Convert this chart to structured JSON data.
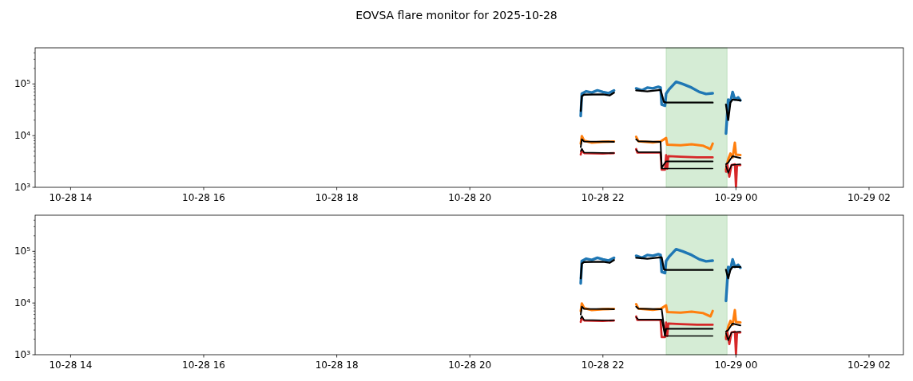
{
  "chart_data": [
    {
      "type": "line",
      "title": "EOVSA flare monitor for 2025-10-28",
      "log": true,
      "xlim": [
        "2025-10-28T13:28",
        "2025-10-29T02:31"
      ],
      "xticks": [
        {
          "value": "2025-10-28T14:00",
          "label": "10-28 14"
        },
        {
          "value": "2025-10-28T16:00",
          "label": "10-28 16"
        },
        {
          "value": "2025-10-28T18:00",
          "label": "10-28 18"
        },
        {
          "value": "2025-10-28T20:00",
          "label": "10-28 20"
        },
        {
          "value": "2025-10-28T22:00",
          "label": "10-28 22"
        },
        {
          "value": "2025-10-29T00:00",
          "label": "10-29 00"
        },
        {
          "value": "2025-10-29T02:00",
          "label": "10-29 02"
        }
      ],
      "ylim": [
        1000,
        500000
      ],
      "yticks": [
        {
          "value": 1000,
          "label": "10³"
        },
        {
          "value": 10000,
          "label": "10⁴"
        },
        {
          "value": 100000,
          "label": "10⁵"
        },
        {
          "value": 2000,
          "label": null
        },
        {
          "value": 3000,
          "label": null
        },
        {
          "value": 4000,
          "label": null
        },
        {
          "value": 5000,
          "label": null
        },
        {
          "value": 6000,
          "label": null
        },
        {
          "value": 7000,
          "label": null
        },
        {
          "value": 8000,
          "label": null
        },
        {
          "value": 9000,
          "label": null
        },
        {
          "value": 20000,
          "label": null
        },
        {
          "value": 30000,
          "label": null
        },
        {
          "value": 40000,
          "label": null
        },
        {
          "value": 50000,
          "label": null
        },
        {
          "value": 60000,
          "label": null
        },
        {
          "value": 70000,
          "label": null
        },
        {
          "value": 80000,
          "label": null
        },
        {
          "value": 90000,
          "label": null
        },
        {
          "value": 200000,
          "label": null
        },
        {
          "value": 300000,
          "label": null
        },
        {
          "value": 400000,
          "label": null
        }
      ],
      "bands": [
        {
          "axis": "x",
          "from": "2025-10-28T22:57",
          "to": "2025-10-28T23:52",
          "color": "#2ca02c"
        }
      ],
      "series": [
        {
          "color": "#1f77b4",
          "x": [
            "2025-10-28T21:40",
            "2025-10-28T21:41",
            "2025-10-28T21:45",
            "2025-10-28T21:50",
            "2025-10-28T21:55",
            "2025-10-28T22:00",
            "2025-10-28T22:05",
            "2025-10-28T22:10",
            "2025-10-28T22:20",
            "2025-10-28T22:30",
            "2025-10-28T22:35",
            "2025-10-28T22:40",
            "2025-10-28T22:45",
            "2025-10-28T22:50",
            "2025-10-28T22:52",
            "2025-10-28T22:53",
            "2025-10-28T22:56",
            "2025-10-28T22:57",
            "2025-10-28T23:00",
            "2025-10-28T23:06",
            "2025-10-28T23:12",
            "2025-10-28T23:20",
            "2025-10-28T23:27",
            "2025-10-28T23:33",
            "2025-10-28T23:39",
            "2025-10-28T23:45",
            "2025-10-28T23:51",
            "2025-10-28T23:53",
            "2025-10-28T23:55",
            "2025-10-28T23:57",
            "2025-10-28T23:59",
            "2025-10-29T00:02",
            "2025-10-29T00:04"
          ],
          "values": [
            24000,
            65000,
            72000,
            68000,
            75000,
            70000,
            66000,
            75000,
            null,
            82000,
            75000,
            85000,
            82000,
            88000,
            85000,
            40000,
            38000,
            65000,
            80000,
            110000,
            100000,
            85000,
            70000,
            64000,
            66000,
            null,
            11000,
            50000,
            45000,
            70000,
            50000,
            55000,
            48000
          ]
        },
        {
          "color": "#ff7f0e",
          "x": [
            "2025-10-28T21:40",
            "2025-10-28T21:41",
            "2025-10-28T21:43",
            "2025-10-28T21:50",
            "2025-10-28T22:00",
            "2025-10-28T22:10",
            "2025-10-28T22:20",
            "2025-10-28T22:30",
            "2025-10-28T22:32",
            "2025-10-28T22:45",
            "2025-10-28T22:52",
            "2025-10-28T22:57",
            "2025-10-28T22:58",
            "2025-10-28T23:10",
            "2025-10-28T23:20",
            "2025-10-28T23:30",
            "2025-10-28T23:37",
            "2025-10-28T23:39",
            "2025-10-28T23:45",
            "2025-10-28T23:51",
            "2025-10-28T23:53",
            "2025-10-28T23:55",
            "2025-10-28T23:57",
            "2025-10-28T23:59",
            "2025-10-29T00:00",
            "2025-10-29T00:04"
          ],
          "values": [
            7000,
            9800,
            8000,
            7300,
            7600,
            7700,
            null,
            9500,
            7800,
            7400,
            7700,
            9000,
            6700,
            6500,
            6800,
            6400,
            5500,
            7000,
            null,
            2200,
            3500,
            4500,
            3800,
            7300,
            4300,
            4200
          ]
        },
        {
          "color": "#d62728",
          "x": [
            "2025-10-28T21:40",
            "2025-10-28T21:41",
            "2025-10-28T21:43",
            "2025-10-28T22:00",
            "2025-10-28T22:10",
            "2025-10-28T22:20",
            "2025-10-28T22:30",
            "2025-10-28T22:31",
            "2025-10-28T22:52",
            "2025-10-28T22:53",
            "2025-10-28T22:56",
            "2025-10-28T22:57",
            "2025-10-28T22:58",
            "2025-10-28T22:59",
            "2025-10-28T23:10",
            "2025-10-28T23:25",
            "2025-10-28T23:39",
            "2025-10-28T23:45",
            "2025-10-28T23:51",
            "2025-10-28T23:52",
            "2025-10-28T23:54",
            "2025-10-28T23:56",
            "2025-10-28T23:59",
            "2025-10-29T00:00",
            "2025-10-29T00:01",
            "2025-10-29T00:04"
          ],
          "values": [
            4300,
            5200,
            4600,
            4500,
            4600,
            null,
            5500,
            4700,
            4700,
            2200,
            2200,
            4200,
            2300,
            4000,
            3900,
            3800,
            3800,
            null,
            2000,
            2900,
            1600,
            2700,
            2800,
            1000,
            2700,
            2700
          ]
        },
        {
          "color": "#000000",
          "x": [
            "2025-10-28T21:40",
            "2025-10-28T21:41",
            "2025-10-28T21:43",
            "2025-10-28T22:00",
            "2025-10-28T22:06",
            "2025-10-28T22:10",
            "2025-10-28T22:20",
            "2025-10-28T22:30",
            "2025-10-28T22:40",
            "2025-10-28T22:50",
            "2025-10-28T22:52",
            "2025-10-28T22:55",
            "2025-10-28T22:57",
            "2025-10-28T23:39",
            "2025-10-28T23:45",
            "2025-10-28T23:51",
            "2025-10-28T23:53",
            "2025-10-28T23:55",
            "2025-10-28T23:57",
            "2025-10-29T00:04"
          ],
          "values": [
            30000,
            58000,
            62000,
            63000,
            60000,
            68000,
            null,
            75000,
            72000,
            76000,
            76000,
            45000,
            43600,
            43600,
            null,
            40000,
            20000,
            44000,
            50000,
            48000
          ]
        },
        {
          "color": "#000000",
          "x": [
            "2025-10-28T21:40",
            "2025-10-28T21:41",
            "2025-10-28T21:43",
            "2025-10-28T22:10",
            "2025-10-28T22:20",
            "2025-10-28T22:30",
            "2025-10-28T22:32",
            "2025-10-28T22:52",
            "2025-10-28T22:53",
            "2025-10-28T22:57",
            "2025-10-28T23:39",
            "2025-10-28T23:45",
            "2025-10-28T23:51",
            "2025-10-28T23:53",
            "2025-10-28T23:55",
            "2025-10-28T23:57",
            "2025-10-29T00:04"
          ],
          "values": [
            6000,
            8500,
            7700,
            7600,
            null,
            8500,
            7800,
            7600,
            2400,
            3170,
            3170,
            null,
            2800,
            3000,
            3500,
            4000,
            3700
          ]
        },
        {
          "color": "#000000",
          "x": [
            "2025-10-28T21:40",
            "2025-10-28T21:41",
            "2025-10-28T21:43",
            "2025-10-28T22:10",
            "2025-10-28T22:20",
            "2025-10-28T22:30",
            "2025-10-28T22:32",
            "2025-10-28T22:52",
            "2025-10-28T22:53",
            "2025-10-28T22:57",
            "2025-10-28T23:39",
            "2025-10-28T23:45",
            "2025-10-28T23:51",
            "2025-10-28T23:53",
            "2025-10-28T23:56",
            "2025-10-29T00:04"
          ],
          "values": [
            5000,
            5600,
            4700,
            4600,
            null,
            5300,
            4800,
            4800,
            2300,
            2300,
            2300,
            null,
            2600,
            1900,
            2700,
            2800
          ]
        }
      ]
    },
    {
      "type": "line",
      "log": true,
      "xlim": [
        "2025-10-28T13:28",
        "2025-10-29T02:31"
      ],
      "xticks": [
        {
          "value": "2025-10-28T14:00",
          "label": "10-28 14"
        },
        {
          "value": "2025-10-28T16:00",
          "label": "10-28 16"
        },
        {
          "value": "2025-10-28T18:00",
          "label": "10-28 18"
        },
        {
          "value": "2025-10-28T20:00",
          "label": "10-28 20"
        },
        {
          "value": "2025-10-28T22:00",
          "label": "10-28 22"
        },
        {
          "value": "2025-10-29T00:00",
          "label": "10-29 00"
        },
        {
          "value": "2025-10-29T02:00",
          "label": "10-29 02"
        }
      ],
      "ylim": [
        1000,
        500000
      ],
      "yticks": [
        {
          "value": 1000,
          "label": "10³"
        },
        {
          "value": 10000,
          "label": "10⁴"
        },
        {
          "value": 100000,
          "label": "10⁵"
        },
        {
          "value": 2000,
          "label": null
        },
        {
          "value": 3000,
          "label": null
        },
        {
          "value": 4000,
          "label": null
        },
        {
          "value": 5000,
          "label": null
        },
        {
          "value": 6000,
          "label": null
        },
        {
          "value": 7000,
          "label": null
        },
        {
          "value": 8000,
          "label": null
        },
        {
          "value": 9000,
          "label": null
        },
        {
          "value": 20000,
          "label": null
        },
        {
          "value": 30000,
          "label": null
        },
        {
          "value": 40000,
          "label": null
        },
        {
          "value": 50000,
          "label": null
        },
        {
          "value": 60000,
          "label": null
        },
        {
          "value": 70000,
          "label": null
        },
        {
          "value": 80000,
          "label": null
        },
        {
          "value": 90000,
          "label": null
        },
        {
          "value": 200000,
          "label": null
        },
        {
          "value": 300000,
          "label": null
        },
        {
          "value": 400000,
          "label": null
        }
      ],
      "bands": [
        {
          "axis": "x",
          "from": "2025-10-28T22:57",
          "to": "2025-10-28T23:52",
          "color": "#2ca02c"
        }
      ],
      "series": [
        {
          "color": "#1f77b4",
          "x": [
            "2025-10-28T21:40",
            "2025-10-28T21:41",
            "2025-10-28T21:45",
            "2025-10-28T21:50",
            "2025-10-28T21:55",
            "2025-10-28T22:00",
            "2025-10-28T22:05",
            "2025-10-28T22:10",
            "2025-10-28T22:20",
            "2025-10-28T22:30",
            "2025-10-28T22:35",
            "2025-10-28T22:40",
            "2025-10-28T22:45",
            "2025-10-28T22:50",
            "2025-10-28T22:52",
            "2025-10-28T22:53",
            "2025-10-28T22:56",
            "2025-10-28T22:57",
            "2025-10-28T23:00",
            "2025-10-28T23:06",
            "2025-10-28T23:12",
            "2025-10-28T23:20",
            "2025-10-28T23:27",
            "2025-10-28T23:33",
            "2025-10-28T23:39",
            "2025-10-28T23:45",
            "2025-10-28T23:51",
            "2025-10-28T23:53",
            "2025-10-28T23:55",
            "2025-10-28T23:57",
            "2025-10-28T23:59",
            "2025-10-29T00:02",
            "2025-10-29T00:04"
          ],
          "values": [
            24000,
            65000,
            72000,
            68000,
            75000,
            70000,
            66000,
            75000,
            null,
            82000,
            75000,
            85000,
            82000,
            88000,
            85000,
            40000,
            38000,
            65000,
            80000,
            110000,
            100000,
            85000,
            70000,
            64000,
            66000,
            null,
            11000,
            50000,
            45000,
            70000,
            50000,
            55000,
            48000
          ]
        },
        {
          "color": "#ff7f0e",
          "x": [
            "2025-10-28T21:40",
            "2025-10-28T21:41",
            "2025-10-28T21:43",
            "2025-10-28T21:50",
            "2025-10-28T22:00",
            "2025-10-28T22:10",
            "2025-10-28T22:20",
            "2025-10-28T22:30",
            "2025-10-28T22:32",
            "2025-10-28T22:45",
            "2025-10-28T22:52",
            "2025-10-28T22:57",
            "2025-10-28T22:58",
            "2025-10-28T23:10",
            "2025-10-28T23:20",
            "2025-10-28T23:30",
            "2025-10-28T23:37",
            "2025-10-28T23:39",
            "2025-10-28T23:45",
            "2025-10-28T23:51",
            "2025-10-28T23:53",
            "2025-10-28T23:55",
            "2025-10-28T23:57",
            "2025-10-28T23:59",
            "2025-10-29T00:00",
            "2025-10-29T00:04"
          ],
          "values": [
            7000,
            9800,
            8000,
            7300,
            7600,
            7700,
            null,
            9500,
            7800,
            7400,
            7700,
            9000,
            6700,
            6500,
            6800,
            6400,
            5500,
            7000,
            null,
            2200,
            3500,
            4500,
            3800,
            7300,
            4300,
            4200
          ]
        },
        {
          "color": "#d62728",
          "x": [
            "2025-10-28T21:40",
            "2025-10-28T21:41",
            "2025-10-28T21:43",
            "2025-10-28T22:00",
            "2025-10-28T22:10",
            "2025-10-28T22:20",
            "2025-10-28T22:30",
            "2025-10-28T22:31",
            "2025-10-28T22:52",
            "2025-10-28T22:53",
            "2025-10-28T22:56",
            "2025-10-28T22:57",
            "2025-10-28T22:58",
            "2025-10-28T22:59",
            "2025-10-28T23:10",
            "2025-10-28T23:25",
            "2025-10-28T23:39",
            "2025-10-28T23:45",
            "2025-10-28T23:51",
            "2025-10-28T23:52",
            "2025-10-28T23:54",
            "2025-10-28T23:56",
            "2025-10-28T23:59",
            "2025-10-29T00:00",
            "2025-10-29T00:01",
            "2025-10-29T00:04"
          ],
          "values": [
            4300,
            5200,
            4600,
            4500,
            4600,
            null,
            5500,
            4700,
            4700,
            2200,
            2200,
            4200,
            2300,
            4000,
            3900,
            3800,
            3800,
            null,
            2000,
            2900,
            1600,
            2700,
            2800,
            1000,
            2700,
            2700
          ]
        },
        {
          "color": "#000000",
          "x": [
            "2025-10-28T21:40",
            "2025-10-28T21:41",
            "2025-10-28T21:43",
            "2025-10-28T22:00",
            "2025-10-28T22:06",
            "2025-10-28T22:10",
            "2025-10-28T22:20",
            "2025-10-28T22:30",
            "2025-10-28T22:40",
            "2025-10-28T22:50",
            "2025-10-28T22:53",
            "2025-10-28T22:55",
            "2025-10-28T22:57",
            "2025-10-28T23:39",
            "2025-10-28T23:45",
            "2025-10-28T23:51",
            "2025-10-28T23:53",
            "2025-10-28T23:55",
            "2025-10-28T23:57",
            "2025-10-29T00:04"
          ],
          "values": [
            30000,
            58000,
            62000,
            63000,
            60000,
            68000,
            null,
            75000,
            72000,
            76000,
            76000,
            45000,
            43600,
            43600,
            null,
            44000,
            30000,
            44000,
            50000,
            50000
          ]
        },
        {
          "color": "#000000",
          "x": [
            "2025-10-28T21:40",
            "2025-10-28T21:41",
            "2025-10-28T21:43",
            "2025-10-28T22:10",
            "2025-10-28T22:20",
            "2025-10-28T22:30",
            "2025-10-28T22:32",
            "2025-10-28T22:53",
            "2025-10-28T22:56",
            "2025-10-28T22:57",
            "2025-10-28T23:39",
            "2025-10-28T23:45",
            "2025-10-28T23:51",
            "2025-10-28T23:53",
            "2025-10-28T23:55",
            "2025-10-28T23:57",
            "2025-10-29T00:04"
          ],
          "values": [
            6000,
            8500,
            7700,
            7600,
            null,
            8500,
            7800,
            7600,
            2400,
            3170,
            3170,
            null,
            2800,
            3000,
            3500,
            4000,
            3700
          ]
        },
        {
          "color": "#000000",
          "x": [
            "2025-10-28T21:40",
            "2025-10-28T21:41",
            "2025-10-28T21:43",
            "2025-10-28T22:10",
            "2025-10-28T22:20",
            "2025-10-28T22:30",
            "2025-10-28T22:32",
            "2025-10-28T22:53",
            "2025-10-28T22:56",
            "2025-10-28T22:57",
            "2025-10-28T23:39",
            "2025-10-28T23:45",
            "2025-10-28T23:51",
            "2025-10-28T23:53",
            "2025-10-28T23:56",
            "2025-10-29T00:04"
          ],
          "values": [
            5000,
            5600,
            4700,
            4600,
            null,
            5300,
            4800,
            4800,
            2300,
            2300,
            2300,
            null,
            2600,
            1900,
            2700,
            2800
          ]
        }
      ]
    }
  ]
}
